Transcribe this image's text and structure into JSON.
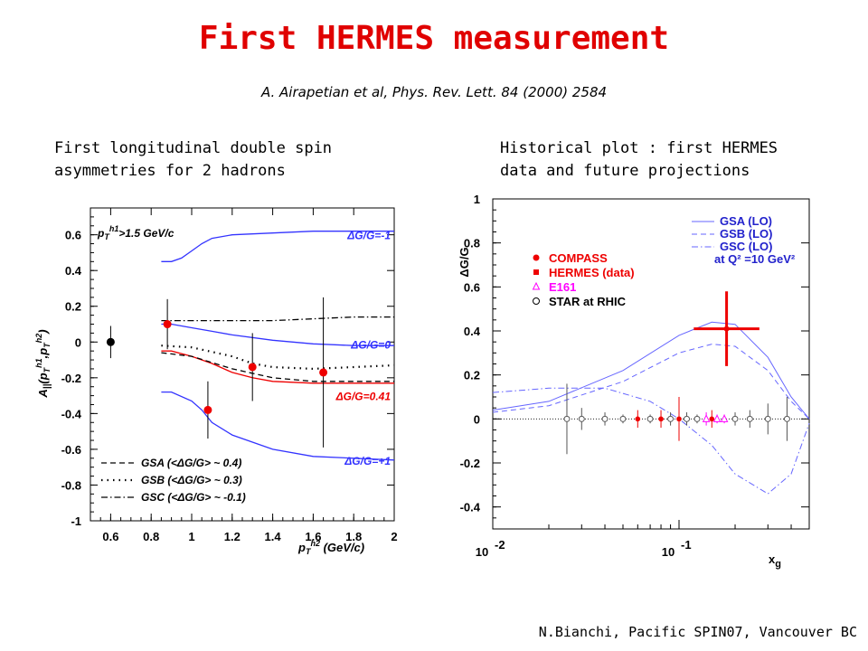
{
  "header": {
    "title": "First HERMES measurement",
    "reference": "A. Airapetian et al, Phys. Rev. Lett. 84 (2000) 2584"
  },
  "captions": {
    "left": "First longitudinal double spin\nasymmetries for 2 hadrons",
    "right": "Historical plot : first HERMES\ndata and future projections"
  },
  "footer": "N.Bianchi, Pacific SPIN07, Vancouver BC",
  "colors": {
    "title": "#e00000",
    "theory_blue": "#3333ff",
    "data_red": "#ee0000",
    "e161": "#ff00ff"
  },
  "chart_data": [
    {
      "type": "line",
      "xlabel": "p_T^{h2} (GeV/c)",
      "ylabel": "A_||(p_T^{h1}, p_T^{h2})",
      "xlim": [
        0.5,
        2.0
      ],
      "ylim": [
        -1.0,
        0.75
      ],
      "xticks": [
        "0.6",
        "0.8",
        "1",
        "1.2",
        "1.4",
        "1.6",
        "1.8",
        "2"
      ],
      "yticks": [
        "0.6",
        "0.4",
        "0.2",
        "0",
        "-0.2",
        "-0.4",
        "-0.6",
        "-0.8",
        "-1"
      ],
      "cut_label": "p_T^{h1} > 1.5 GeV/c",
      "curve_labels": [
        "ΔG/G=-1",
        "ΔG/G=0",
        "ΔG/G=0.41",
        "ΔG/G=+1"
      ],
      "legend": [
        {
          "style": "dashed",
          "label": "GSA (<ΔG/G> ~ 0.4)"
        },
        {
          "style": "dotted",
          "label": "GSB (<ΔG/G> ~ 0.3)"
        },
        {
          "style": "dashdot",
          "label": "GSC (<ΔG/G> ~ -0.1)"
        }
      ],
      "series": [
        {
          "style": "blue",
          "x": [
            0.85,
            0.9,
            0.95,
            1.0,
            1.05,
            1.1,
            1.2,
            1.4,
            1.6,
            1.8,
            2.0
          ],
          "y": [
            0.45,
            0.45,
            0.47,
            0.51,
            0.55,
            0.58,
            0.6,
            0.61,
            0.62,
            0.62,
            0.62
          ]
        },
        {
          "style": "blue",
          "x": [
            0.85,
            0.9,
            1.0,
            1.1,
            1.2,
            1.4,
            1.6,
            1.8,
            2.0
          ],
          "y": [
            0.1,
            0.1,
            0.08,
            0.06,
            0.04,
            0.01,
            -0.01,
            -0.02,
            -0.02
          ]
        },
        {
          "style": "red",
          "x": [
            0.85,
            0.9,
            1.0,
            1.1,
            1.2,
            1.3,
            1.4,
            1.6,
            1.8,
            2.0
          ],
          "y": [
            -0.05,
            -0.05,
            -0.08,
            -0.12,
            -0.17,
            -0.2,
            -0.22,
            -0.23,
            -0.23,
            -0.23
          ]
        },
        {
          "style": "blue",
          "x": [
            0.85,
            0.9,
            1.0,
            1.05,
            1.1,
            1.2,
            1.4,
            1.6,
            1.8,
            2.0
          ],
          "y": [
            -0.28,
            -0.28,
            -0.33,
            -0.38,
            -0.45,
            -0.52,
            -0.6,
            -0.64,
            -0.65,
            -0.66
          ]
        },
        {
          "style": "dashdot",
          "x": [
            0.85,
            1.0,
            1.2,
            1.4,
            1.6,
            1.8,
            2.0
          ],
          "y": [
            0.12,
            0.12,
            0.12,
            0.12,
            0.13,
            0.14,
            0.14
          ]
        },
        {
          "style": "dotted",
          "x": [
            0.85,
            1.0,
            1.2,
            1.3,
            1.4,
            1.6,
            1.8,
            2.0
          ],
          "y": [
            -0.02,
            -0.03,
            -0.08,
            -0.12,
            -0.14,
            -0.15,
            -0.14,
            -0.13
          ]
        },
        {
          "style": "dashed",
          "x": [
            0.85,
            1.0,
            1.2,
            1.4,
            1.6,
            1.8,
            2.0
          ],
          "y": [
            -0.06,
            -0.08,
            -0.15,
            -0.2,
            -0.22,
            -0.22,
            -0.22
          ]
        }
      ],
      "points": [
        {
          "x": 0.6,
          "y": 0.0,
          "err": 0.09,
          "color": "black"
        },
        {
          "x": 0.88,
          "y": 0.1,
          "err": 0.14,
          "color": "red"
        },
        {
          "x": 1.08,
          "y": -0.38,
          "err": 0.16,
          "color": "red"
        },
        {
          "x": 1.3,
          "y": -0.14,
          "err": 0.19,
          "color": "red"
        },
        {
          "x": 1.65,
          "y": -0.17,
          "err": 0.42,
          "color": "red"
        }
      ]
    },
    {
      "type": "line",
      "xlabel": "x_g",
      "ylabel": "ΔG/G",
      "xscale": "log",
      "xlim": [
        0.01,
        0.5
      ],
      "ylim": [
        -0.5,
        1.0
      ],
      "yticks": [
        "1",
        "0.8",
        "0.6",
        "0.4",
        "0.2",
        "0",
        "-0.2",
        "-0.4"
      ],
      "xticks": [
        {
          "base": "10",
          "exp": "-2",
          "value": 0.01
        },
        {
          "base": "10",
          "exp": "-1",
          "value": 0.1
        }
      ],
      "legend_theory": [
        {
          "style": "solid",
          "label": "GSA (LO)"
        },
        {
          "style": "dashed",
          "label": "GSB (LO)"
        },
        {
          "style": "dashdot",
          "label": "GSC (LO)"
        }
      ],
      "q2_note": "at Q² =10 GeV²",
      "legend_data": [
        {
          "marker": "dot",
          "color": "#ee0000",
          "label": "COMPASS"
        },
        {
          "marker": "square",
          "color": "#ee0000",
          "label": "HERMES (data)"
        },
        {
          "marker": "triangle",
          "color": "#ff00ff",
          "label": "E161"
        },
        {
          "marker": "circle",
          "color": "#000000",
          "label": "STAR at RHIC"
        }
      ],
      "series": [
        {
          "style": "solid",
          "x": [
            0.01,
            0.02,
            0.05,
            0.1,
            0.15,
            0.2,
            0.3,
            0.4,
            0.5
          ],
          "y": [
            0.04,
            0.08,
            0.22,
            0.38,
            0.44,
            0.43,
            0.28,
            0.1,
            0.0
          ]
        },
        {
          "style": "dashed",
          "x": [
            0.01,
            0.02,
            0.05,
            0.1,
            0.15,
            0.2,
            0.3,
            0.4,
            0.5
          ],
          "y": [
            0.03,
            0.06,
            0.17,
            0.3,
            0.34,
            0.33,
            0.22,
            0.08,
            0.0
          ]
        },
        {
          "style": "dashdot",
          "x": [
            0.01,
            0.02,
            0.04,
            0.07,
            0.1,
            0.15,
            0.2,
            0.3,
            0.4,
            0.5
          ],
          "y": [
            0.12,
            0.14,
            0.14,
            0.08,
            0.0,
            -0.12,
            -0.25,
            -0.34,
            -0.25,
            -0.02
          ]
        }
      ],
      "points": [
        {
          "x": 0.18,
          "y": 0.41,
          "err": 0.17,
          "xerr_lo": 0.12,
          "xerr_hi": 0.27,
          "color": "#ee0000",
          "type": "hermes"
        },
        {
          "x": 0.025,
          "y": 0.0,
          "err": 0.16,
          "color": "#555555",
          "type": "star"
        },
        {
          "x": 0.03,
          "y": 0.0,
          "err": 0.05,
          "color": "#555555",
          "type": "star"
        },
        {
          "x": 0.04,
          "y": 0.0,
          "err": 0.03,
          "color": "#555555",
          "type": "star"
        },
        {
          "x": 0.05,
          "y": 0.0,
          "err": 0.02,
          "color": "#555555",
          "type": "star"
        },
        {
          "x": 0.06,
          "y": 0.0,
          "err": 0.04,
          "color": "#ee0000",
          "type": "compass"
        },
        {
          "x": 0.07,
          "y": 0.0,
          "err": 0.02,
          "color": "#555555",
          "type": "star"
        },
        {
          "x": 0.08,
          "y": 0.0,
          "err": 0.04,
          "color": "#ee0000",
          "type": "compass"
        },
        {
          "x": 0.09,
          "y": 0.0,
          "err": 0.03,
          "color": "#555555",
          "type": "star"
        },
        {
          "x": 0.1,
          "y": 0.0,
          "err": 0.1,
          "color": "#ee0000",
          "type": "compass"
        },
        {
          "x": 0.11,
          "y": 0.0,
          "err": 0.03,
          "color": "#555555",
          "type": "star"
        },
        {
          "x": 0.125,
          "y": 0.0,
          "err": 0.02,
          "color": "#555555",
          "type": "star"
        },
        {
          "x": 0.14,
          "y": 0.0,
          "err": 0.03,
          "color": "#ff00ff",
          "type": "e161"
        },
        {
          "x": 0.15,
          "y": 0.0,
          "err": 0.04,
          "color": "#ee0000",
          "type": "compass"
        },
        {
          "x": 0.16,
          "y": 0.0,
          "err": 0.02,
          "color": "#ff00ff",
          "type": "e161"
        },
        {
          "x": 0.175,
          "y": 0.0,
          "err": 0.02,
          "color": "#ff00ff",
          "type": "e161"
        },
        {
          "x": 0.2,
          "y": 0.0,
          "err": 0.03,
          "color": "#555555",
          "type": "star"
        },
        {
          "x": 0.24,
          "y": 0.0,
          "err": 0.04,
          "color": "#555555",
          "type": "star"
        },
        {
          "x": 0.3,
          "y": 0.0,
          "err": 0.07,
          "color": "#555555",
          "type": "star"
        },
        {
          "x": 0.38,
          "y": 0.0,
          "err": 0.1,
          "color": "#555555",
          "type": "star"
        }
      ]
    }
  ]
}
